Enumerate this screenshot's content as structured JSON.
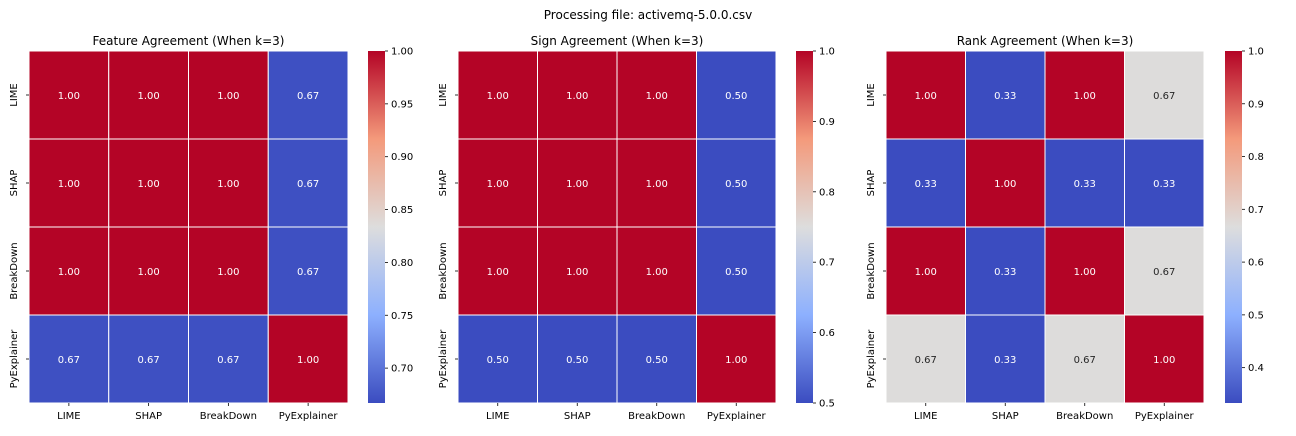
{
  "suptitle": "Processing file: activemq-5.0.0.csv",
  "colors": {
    "low": "#3b4cc0",
    "mid": "#dddddd",
    "high": "#b40426"
  },
  "chart_data": [
    {
      "type": "heatmap",
      "title": "Feature Agreement (When k=3)",
      "categories": [
        "LIME",
        "SHAP",
        "BreakDown",
        "PyExplainer"
      ],
      "values": [
        [
          1.0,
          1.0,
          1.0,
          0.67
        ],
        [
          1.0,
          1.0,
          1.0,
          0.67
        ],
        [
          1.0,
          1.0,
          1.0,
          0.67
        ],
        [
          0.67,
          0.67,
          0.67,
          1.0
        ]
      ],
      "colorbar_range": [
        0.667,
        1.0
      ],
      "colorbar_ticks": [
        "0.70",
        "0.75",
        "0.80",
        "0.85",
        "0.90",
        "0.95",
        "1.00"
      ]
    },
    {
      "type": "heatmap",
      "title": "Sign Agreement (When k=3)",
      "categories": [
        "LIME",
        "SHAP",
        "BreakDown",
        "PyExplainer"
      ],
      "values": [
        [
          1.0,
          1.0,
          1.0,
          0.5
        ],
        [
          1.0,
          1.0,
          1.0,
          0.5
        ],
        [
          1.0,
          1.0,
          1.0,
          0.5
        ],
        [
          0.5,
          0.5,
          0.5,
          1.0
        ]
      ],
      "colorbar_range": [
        0.5,
        1.0
      ],
      "colorbar_ticks": [
        "0.5",
        "0.6",
        "0.7",
        "0.8",
        "0.9",
        "1.0"
      ]
    },
    {
      "type": "heatmap",
      "title": "Rank Agreement (When k=3)",
      "categories": [
        "LIME",
        "SHAP",
        "BreakDown",
        "PyExplainer"
      ],
      "values": [
        [
          1.0,
          0.33,
          1.0,
          0.67
        ],
        [
          0.33,
          1.0,
          0.33,
          0.33
        ],
        [
          1.0,
          0.33,
          1.0,
          0.67
        ],
        [
          0.67,
          0.33,
          0.67,
          1.0
        ]
      ],
      "colorbar_range": [
        0.333,
        1.0
      ],
      "colorbar_ticks": [
        "0.4",
        "0.5",
        "0.6",
        "0.7",
        "0.8",
        "0.9",
        "1.0"
      ]
    }
  ]
}
